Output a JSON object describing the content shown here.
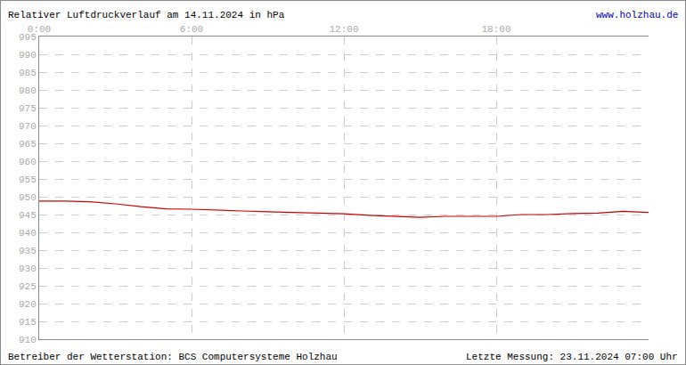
{
  "chart_data": {
    "type": "line",
    "title": "Relativer Luftdruckverlauf am 14.11.2024 in hPa",
    "annotations": [
      "www.holzhau.de",
      "Betreiber der Wetterstation: BCS Computersysteme Holzhau",
      "Letzte Messung: 23.11.2024 07:00 Uhr"
    ],
    "x": [
      0,
      1,
      2,
      3,
      4,
      5,
      6,
      7,
      8,
      9,
      10,
      11,
      12,
      13,
      14,
      15,
      16,
      17,
      18,
      19,
      20,
      21,
      22,
      23,
      24
    ],
    "values": [
      948.8,
      948.8,
      948.6,
      948.0,
      947.2,
      946.6,
      946.5,
      946.2,
      946.0,
      945.8,
      945.6,
      945.5,
      945.2,
      944.8,
      944.5,
      944.2,
      944.5,
      944.5,
      944.5,
      945.0,
      945.0,
      945.3,
      945.4,
      945.9,
      945.6
    ],
    "color": "#cc0000",
    "xlim": [
      0,
      24
    ],
    "xticks": [
      {
        "value": 0,
        "label": "0:00"
      },
      {
        "value": 6,
        "label": "6:00"
      },
      {
        "value": 12,
        "label": "12:00"
      },
      {
        "value": 18,
        "label": "18:00"
      }
    ],
    "ylim": [
      910,
      995
    ],
    "yticks": [
      910,
      915,
      920,
      925,
      930,
      935,
      940,
      945,
      950,
      955,
      960,
      965,
      970,
      975,
      980,
      985,
      990,
      995
    ],
    "grid": true
  }
}
